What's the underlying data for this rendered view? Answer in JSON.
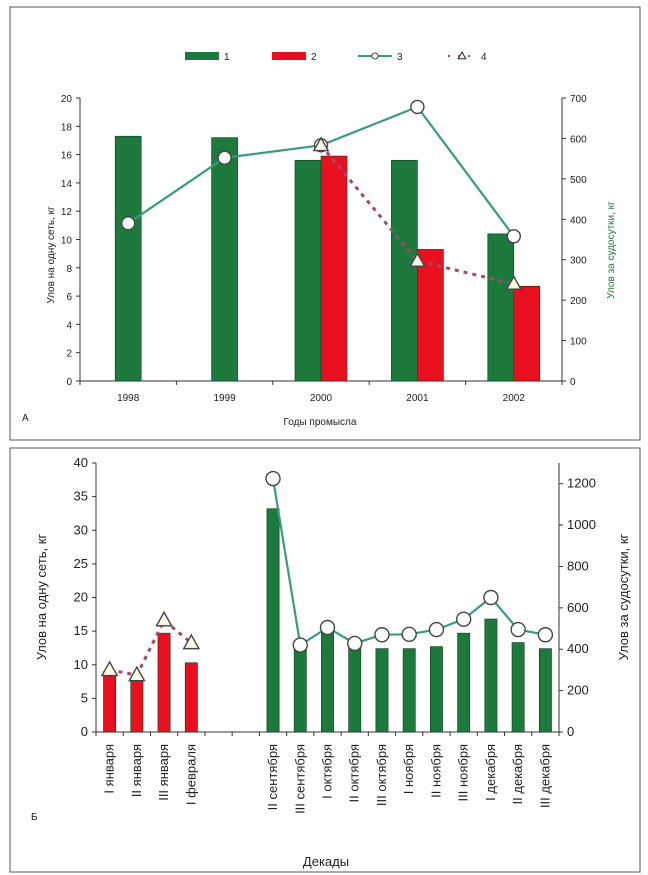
{
  "chart_data": [
    {
      "type": "bar",
      "panel_label": "А",
      "categories": [
        "1998",
        "1999",
        "2000",
        "2001",
        "2002"
      ],
      "series": [
        {
          "name": "1",
          "kind": "bar",
          "axis": "left",
          "color": "#1e7a3c",
          "values": [
            17.3,
            17.2,
            15.6,
            15.6,
            10.4
          ]
        },
        {
          "name": "2",
          "kind": "bar",
          "axis": "left",
          "color": "#e8101e",
          "values": [
            null,
            null,
            15.9,
            9.3,
            6.7
          ]
        },
        {
          "name": "3",
          "kind": "line",
          "axis": "right",
          "color": "#3a9a7e",
          "marker": "circle",
          "values": [
            390,
            552,
            583,
            678,
            358
          ]
        },
        {
          "name": "4",
          "kind": "line",
          "axis": "right",
          "color": "#a04a6e",
          "marker": "triangle",
          "dashed": true,
          "values": [
            null,
            null,
            583,
            297,
            240
          ]
        }
      ],
      "legend": [
        "1",
        "2",
        "3",
        "4"
      ],
      "legend_position": "top",
      "xlabel": "Годы промысла",
      "ylabel_left": "Улов на одну сеть, кг",
      "ylabel_right": "Улов за судосутки, кг",
      "ylim_left": [
        0,
        20
      ],
      "ylim_right": [
        0,
        700
      ],
      "left_ticks": [
        0,
        2,
        4,
        6,
        8,
        10,
        12,
        14,
        16,
        18,
        20
      ],
      "right_ticks": [
        0,
        100,
        200,
        300,
        400,
        500,
        600,
        700
      ],
      "grid": false
    },
    {
      "type": "bar",
      "panel_label": "Б",
      "categories": [
        "I января",
        "II января",
        "III января",
        "I февраля",
        "",
        "",
        "II сентября",
        "III сентября",
        "I октября",
        "II октября",
        "III октября",
        "I ноября",
        "II ноября",
        "III ноября",
        "I декабря",
        "II декабря",
        "III декабря"
      ],
      "series": [
        {
          "name": "",
          "kind": "bar",
          "axis": "left",
          "color": "#e8101e",
          "values": [
            9.0,
            7.6,
            14.7,
            10.3,
            null,
            null,
            null,
            null,
            null,
            null,
            null,
            null,
            null,
            null,
            null,
            null,
            null
          ]
        },
        {
          "name": "",
          "kind": "bar",
          "axis": "left",
          "color": "#1e7a3c",
          "values": [
            null,
            null,
            null,
            null,
            null,
            null,
            33.2,
            12.4,
            15.4,
            12.5,
            12.4,
            12.4,
            12.7,
            14.7,
            16.8,
            13.3,
            12.4
          ]
        },
        {
          "name": "",
          "kind": "line",
          "axis": "right",
          "color": "#3a9a7e",
          "marker": "circle",
          "values": [
            null,
            null,
            null,
            null,
            null,
            null,
            1225,
            420,
            505,
            428,
            470,
            472,
            495,
            545,
            650,
            495,
            470
          ]
        },
        {
          "name": "",
          "kind": "line",
          "axis": "right",
          "color": "#a04a6e",
          "marker": "triangle",
          "dashed": true,
          "values": [
            300,
            275,
            540,
            430,
            null,
            null,
            null,
            null,
            null,
            null,
            null,
            null,
            null,
            null,
            null,
            null,
            null
          ]
        }
      ],
      "xlabel": "Декады",
      "ylabel_left": "Улов на одну сеть, кг",
      "ylabel_right": "Улов за судосутки, кг",
      "ylim_left": [
        0,
        40
      ],
      "ylim_right": [
        0,
        1300
      ],
      "left_ticks": [
        0,
        5,
        10,
        15,
        20,
        25,
        30,
        35,
        40
      ],
      "right_ticks": [
        0,
        200,
        400,
        600,
        800,
        1000,
        1200
      ],
      "grid": false
    }
  ]
}
